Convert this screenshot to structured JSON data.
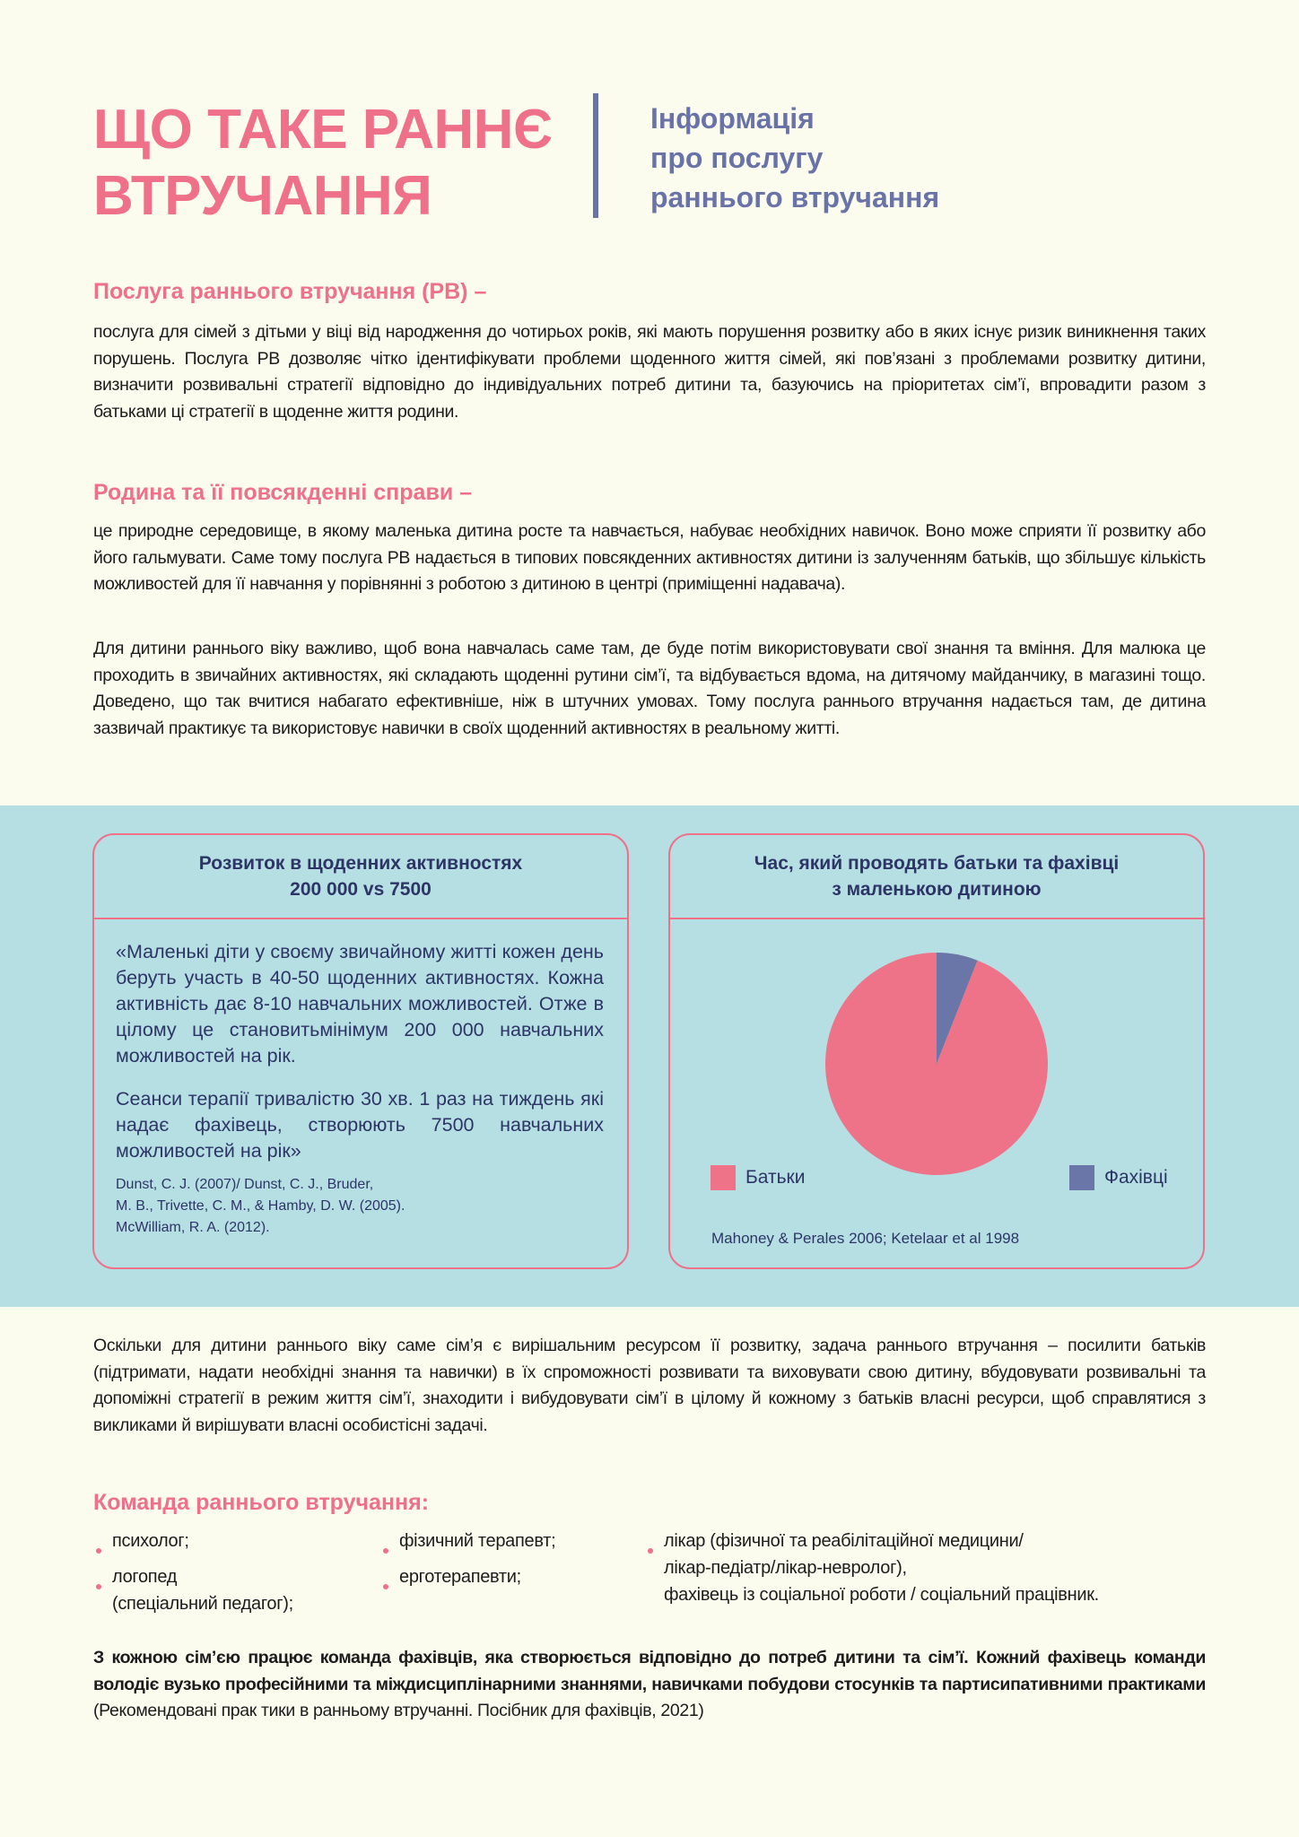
{
  "header": {
    "title_lines": [
      "ЩО ТАКЕ РАННЄ",
      "ВТРУЧАННЯ"
    ],
    "subtitle_lines": [
      "Інформація",
      "про послугу",
      "раннього втручання"
    ]
  },
  "section1": {
    "heading": "Послуга раннього втручання (РВ) –",
    "text": "послуга для сімей з дітьми у віці від народження до чотирьох років, які мають порушення розвитку або в яких існує ризик виникнення таких порушень. Послуга РВ дозволяє чітко ідентифікувати проблеми щоденного життя сімей, які  пов’язані з проблемами розвитку дитини, визначити розвивальні стратегії відповідно до індивідуальних потреб дитини та, базуючись на пріоритетах сім’ї, впровадити разом з батьками  ці стратегії в щоденне життя родини."
  },
  "section2": {
    "heading": "Родина та її повсякденні справи –",
    "text1": "це природне середовище, в якому маленька дитина росте та навчається, набуває необхідних навичок. Воно може сприяти її розвитку або його гальмувати. Саме тому послуга РВ надається в типових повсякденних активностях дитини із залученням батьків, що  збільшує кількість можливостей для її навчання у порівнянні з роботою з дитиною в центрі (приміщенні надавача).",
    "text2": "Для дитини раннього віку важливо, щоб вона навчалась саме там, де буде потім використовувати свої знання та вміння. Для малюка це проходить  в звичайних активностях, які складають щоденні рутини сім’ї,  та відбувається вдома, на дитячому майданчику, в магазині тощо. Доведено, що так вчитися набагато ефективніше, ніж в штучних умовах. Тому послуга раннього втручання надається там, де дитина зазвичай практикує та використовує навички в своїх щоденний активностях в реальному житті."
  },
  "box_left": {
    "title_lines": [
      "Розвиток в щоденних активностях",
      "200 000 vs 7500"
    ],
    "quote1": "«Маленькі діти у своєму звичайному житті кожен день беруть участь в 40-50 щоденних активностях. Кожна активність дає 8-10 навчальних можливостей. Отже в цілому це становитьмінімум 200 000 навчальних можливостей на рік.",
    "quote2": "Сеанси терапії тривалістю 30 хв. 1 раз на тиждень які надає фахівець, створюють 7500 навчальних можливостей на рік»",
    "refs": [
      "Dunst, C. J. (2007)/ Dunst, C. J., Bruder,",
      "M. B., Trivette, C. M., & Hamby, D. W. (2005).",
      "McWilliam, R. A. (2012)."
    ]
  },
  "chart_data": {
    "type": "pie",
    "title": "Час, який проводять батьки та фахівці з маленькою дитиною",
    "title_lines": [
      "Час, який проводять батьки та фахівці",
      "з маленькою дитиною"
    ],
    "slices": [
      {
        "name": "Фахівці",
        "value": 6,
        "color": "#6a75a8"
      },
      {
        "name": "Батьки",
        "value": 94,
        "color": "#ee7389"
      }
    ],
    "legend": [
      "Батьки",
      "Фахівці"
    ],
    "legend_placement": "bottom",
    "source": "Mahoney & Perales 2006; Ketelaar et al 1998"
  },
  "section3": {
    "text": "Оскільки для дитини раннього віку саме сім’я є вирішальним ресурсом її розвитку, задача раннього втручання – посилити батьків (підтримати, надати необхідні знання та навички) в їх спроможності розвивати та виховувати свою дитину, вбудовувати  розвивальні  та допоміжні стратегії в режим життя сім’ї, знаходити і вибудовувати сім’ї в цілому й кожному з батьків власні ресурси, щоб справлятися з викликами й вирішувати власні особистісні задачі."
  },
  "team": {
    "heading": "Команда раннього втручання:",
    "items": [
      "психолог;",
      "логопед",
      "(спеціальний педагог);",
      "фізичний терапевт;",
      "ерготерапевти;",
      "лікар (фізичної та реабілітаційної медицини/",
      "лікар-педіатр/лікар-невролог),",
      "фахівець із соціальної роботи / соціальний працівник."
    ]
  },
  "closing": {
    "bold": "З кожною сім’єю працює команда фахівців, яка створюється відповідно до потреб дитини та сім’ї. Кожний фахівець команди  володіє вузько професійними та міждисциплінарними знаннями, навичками побудови стосунків та партисипативними практиками",
    "normal": " (Рекомендовані прак тики в ранньому втручанні. Посібник для фахівців, 2021)"
  },
  "colors": {
    "accent": "#ee7089",
    "navy": "#2c3565",
    "purple": "#6a73a8",
    "band": "#b6dfe4",
    "background": "#fbfbee"
  }
}
